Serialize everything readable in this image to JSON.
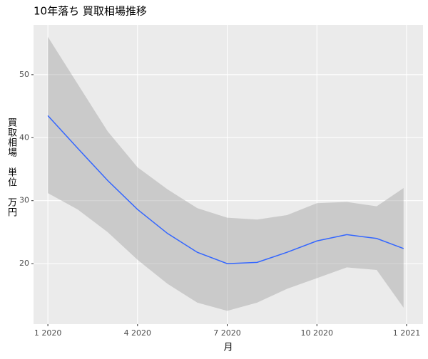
{
  "chart_data": {
    "type": "line",
    "title": "10年落ち 買取相場推移",
    "xlabel": "月",
    "ylabel": "買取相場　単位　万円",
    "x": [
      0,
      1,
      2,
      3,
      4,
      5,
      6,
      7,
      8,
      9,
      10,
      11,
      11.9
    ],
    "line": {
      "color": "#3366ff",
      "values": [
        43.5,
        38.3,
        33.2,
        28.6,
        24.8,
        21.8,
        20.0,
        20.2,
        21.8,
        23.6,
        24.6,
        24.0,
        22.4
      ]
    },
    "band": {
      "color": "#999999",
      "lower": [
        31.2,
        28.6,
        25.0,
        20.6,
        16.8,
        13.8,
        12.5,
        13.8,
        16.0,
        17.7,
        19.4,
        19.0,
        13.0
      ],
      "upper": [
        56.0,
        48.5,
        41.0,
        35.3,
        31.8,
        28.8,
        27.3,
        27.0,
        27.7,
        29.6,
        29.8,
        29.1,
        32.0
      ]
    },
    "xlim": [
      -0.48,
      12.55
    ],
    "xticks": [
      {
        "value": 0,
        "label": "1 2020"
      },
      {
        "value": 3,
        "label": "4 2020"
      },
      {
        "value": 6,
        "label": "7 2020"
      },
      {
        "value": 9,
        "label": "10 2020"
      },
      {
        "value": 12,
        "label": "1 2021"
      }
    ],
    "ylim": [
      10.4,
      57.9
    ],
    "yticks": [
      20,
      30,
      40,
      50
    ],
    "grid": true
  }
}
